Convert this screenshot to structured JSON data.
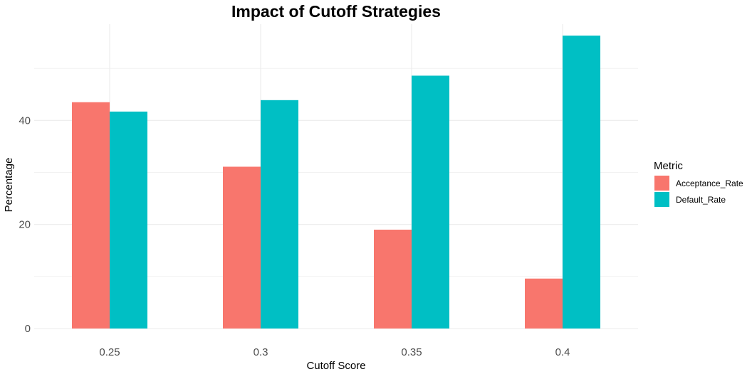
{
  "chart_data": {
    "type": "bar",
    "title": "Impact of Cutoff Strategies",
    "xlabel": "Cutoff Score",
    "ylabel": "Percentage",
    "categories": [
      "0.25",
      "0.3",
      "0.35",
      "0.4"
    ],
    "series": [
      {
        "name": "Acceptance_Rate",
        "color": "#F8766D",
        "values": [
          43.5,
          31.1,
          19.0,
          9.6
        ]
      },
      {
        "name": "Default_Rate",
        "color": "#00BFC4",
        "values": [
          41.7,
          43.9,
          48.6,
          56.3
        ]
      }
    ],
    "yticks": [
      0,
      20,
      40
    ],
    "ytick_labels": [
      "0",
      "20",
      "40"
    ],
    "ylim": [
      0,
      58.5
    ],
    "grid": true,
    "legend": {
      "title": "Metric",
      "placement": "right"
    }
  }
}
